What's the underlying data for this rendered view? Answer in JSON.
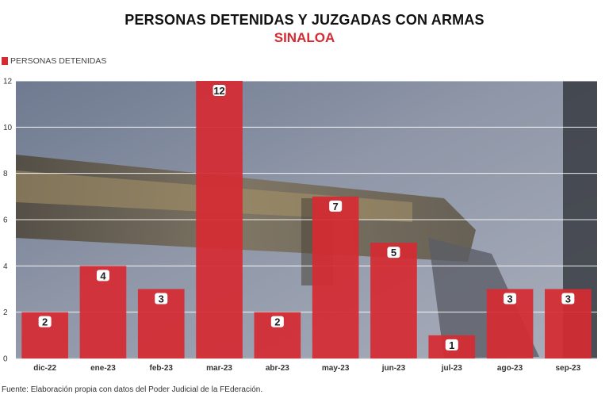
{
  "colors": {
    "bar": "#d52b33",
    "subtitle": "#d52b33"
  },
  "legend": {
    "label": "PERSONAS DETENIDAS"
  },
  "source": "Fuente: Elaboración propia con datos del Poder Judicial de la FEderación.",
  "chart_data": {
    "type": "bar",
    "title": "PERSONAS DETENIDAS Y JUZGADAS CON ARMAS",
    "subtitle": "SINALOA",
    "categories": [
      "dic-22",
      "ene-23",
      "feb-23",
      "mar-23",
      "abr-23",
      "may-23",
      "jun-23",
      "jul-23",
      "ago-23",
      "sep-23"
    ],
    "series": [
      {
        "name": "PERSONAS DETENIDAS",
        "values": [
          2,
          4,
          3,
          12,
          2,
          7,
          5,
          1,
          3,
          3
        ]
      }
    ],
    "ylim": [
      0,
      12
    ],
    "yticks": [
      0,
      2,
      4,
      6,
      8,
      10,
      12
    ],
    "grid": true,
    "legend_position": "top-left",
    "xlabel": "",
    "ylabel": ""
  }
}
